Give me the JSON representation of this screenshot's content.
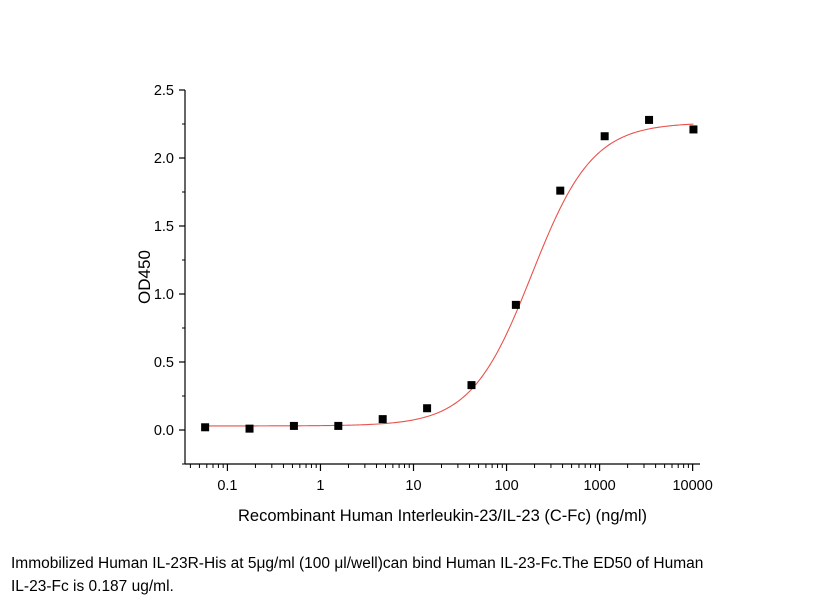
{
  "chart_data": {
    "type": "scatter",
    "title": "",
    "xlabel": "Recombinant Human Interleukin-23/IL-23 (C-Fc) (ng/ml)",
    "ylabel": "OD450",
    "x_scale": "log",
    "xlim": [
      0.035,
      12000
    ],
    "ylim": [
      -0.25,
      2.5
    ],
    "x_ticks": [
      0.1,
      1,
      10,
      100,
      1000,
      10000
    ],
    "x_tick_labels": [
      "0.1",
      "1",
      "10",
      "100",
      "1000",
      "10000"
    ],
    "y_ticks": [
      0.0,
      0.5,
      1.0,
      1.5,
      2.0,
      2.5
    ],
    "y_tick_labels": [
      "0.0",
      "0.5",
      "1.0",
      "1.5",
      "2.0",
      "2.5"
    ],
    "grid": false,
    "legend": "none",
    "series": [
      {
        "type": "scatter",
        "marker": "square",
        "color": "#000000",
        "x": [
          0.0576,
          0.1728,
          0.5184,
          1.5552,
          4.6656,
          13.997,
          41.99,
          125.97,
          377.91,
          1133.7,
          3401.2,
          10203.6
        ],
        "y": [
          0.02,
          0.01,
          0.03,
          0.03,
          0.08,
          0.16,
          0.33,
          0.92,
          1.76,
          2.16,
          2.28,
          2.21
        ]
      },
      {
        "type": "line",
        "fit": "four-parameter logistic",
        "color": "#e8524c",
        "params": {
          "bottom": 0.03,
          "top": 2.26,
          "ec50": 187,
          "hill": 1.33
        }
      }
    ]
  },
  "caption": {
    "line1": "Immobilized Human IL-23R-His at 5μg/ml (100 μl/well)can bind Human IL-23-Fc.The ED50 of Human",
    "line2": "IL-23-Fc is 0.187 ug/ml."
  }
}
